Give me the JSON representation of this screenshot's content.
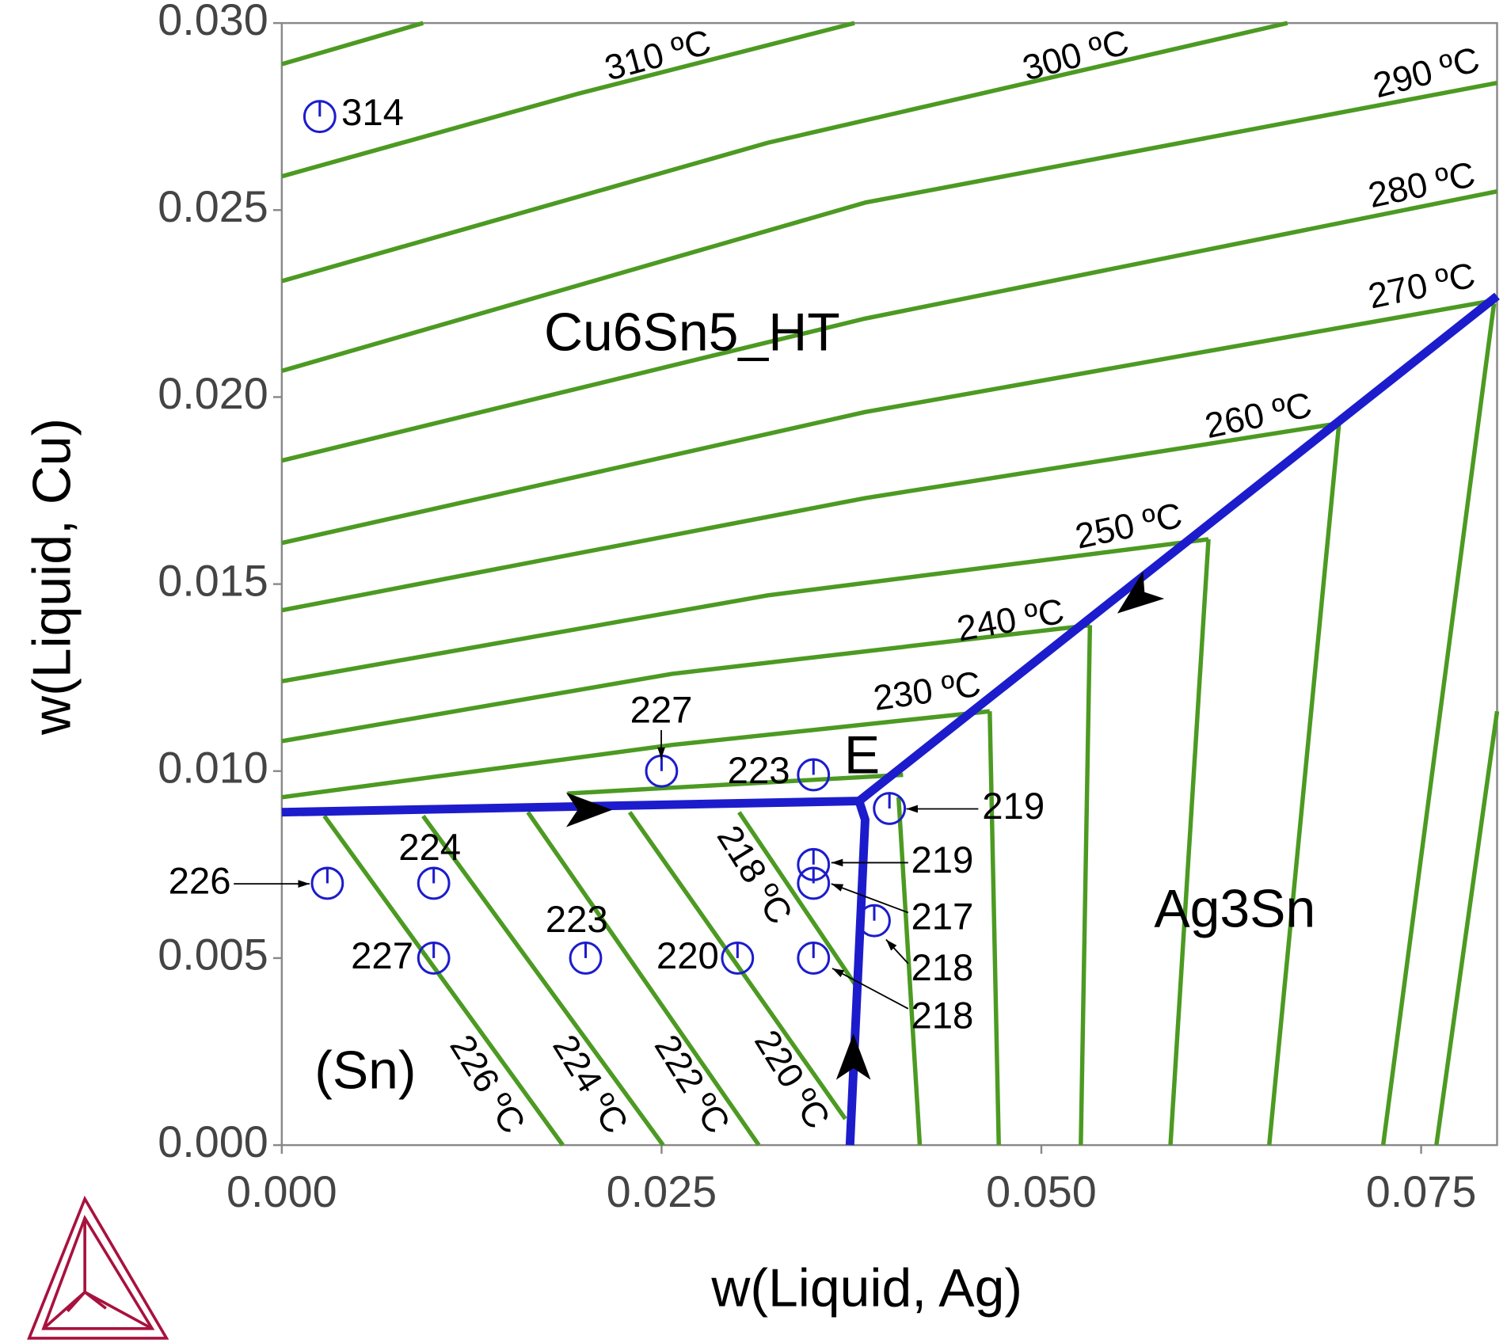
{
  "chart_data": {
    "type": "line",
    "xlabel": "w(Liquid, Ag)",
    "ylabel": "w(Liquid, Cu)",
    "xlim": [
      0,
      0.08
    ],
    "ylim": [
      0,
      0.03
    ],
    "xticks": [
      {
        "value": 0,
        "label": "0.000"
      },
      {
        "value": 0.025,
        "label": "0.025"
      },
      {
        "value": 0.05,
        "label": "0.050"
      },
      {
        "value": 0.075,
        "label": "0.075"
      }
    ],
    "yticks": [
      {
        "value": 0,
        "label": "0.000"
      },
      {
        "value": 0.005,
        "label": "0.005"
      },
      {
        "value": 0.01,
        "label": "0.010"
      },
      {
        "value": 0.015,
        "label": "0.015"
      },
      {
        "value": 0.02,
        "label": "0.020"
      },
      {
        "value": 0.025,
        "label": "0.025"
      },
      {
        "value": 0.03,
        "label": "0.030"
      }
    ],
    "series": [
      {
        "color": "#4c9a22",
        "x": [
          0,
          0.0093
        ],
        "y": [
          0.0289,
          0.03
        ]
      },
      {
        "color": "#4c9a22",
        "x": [
          0,
          0.0194,
          0.0377
        ],
        "y": [
          0.0259,
          0.0281,
          0.03
        ]
      },
      {
        "color": "#4c9a22",
        "x": [
          0,
          0.032,
          0.0662
        ],
        "y": [
          0.0231,
          0.0268,
          0.03
        ]
      },
      {
        "color": "#4c9a22",
        "x": [
          0,
          0.0384,
          0.08
        ],
        "y": [
          0.0207,
          0.0252,
          0.0284
        ]
      },
      {
        "color": "#4c9a22",
        "x": [
          0,
          0.0384,
          0.08
        ],
        "y": [
          0.0183,
          0.0221,
          0.0255
        ]
      },
      {
        "color": "#4c9a22",
        "x": [
          0,
          0.0384,
          0.08
        ],
        "y": [
          0.0161,
          0.0196,
          0.0226
        ]
      },
      {
        "color": "#4c9a22",
        "x": [
          0,
          0.0384,
          0.0696
        ],
        "y": [
          0.0143,
          0.0173,
          0.0193
        ]
      },
      {
        "color": "#4c9a22",
        "x": [
          0,
          0.032,
          0.061
        ],
        "y": [
          0.0124,
          0.0147,
          0.0162
        ]
      },
      {
        "color": "#4c9a22",
        "x": [
          0,
          0.0257,
          0.0532
        ],
        "y": [
          0.0108,
          0.0126,
          0.0139
        ]
      },
      {
        "color": "#4c9a22",
        "x": [
          0,
          0.0257,
          0.0466
        ],
        "y": [
          0.0093,
          0.0107,
          0.0116
        ]
      },
      {
        "color": "#4c9a22",
        "x": [
          0.0188,
          0.0409
        ],
        "y": [
          0.0094,
          0.0099
        ]
      },
      {
        "color": "#4c9a22",
        "x": [
          0.0028,
          0.0185
        ],
        "y": [
          0.0088,
          0
        ]
      },
      {
        "color": "#4c9a22",
        "x": [
          0.0093,
          0.0251
        ],
        "y": [
          0.0088,
          0
        ]
      },
      {
        "color": "#4c9a22",
        "x": [
          0.0162,
          0.0314
        ],
        "y": [
          0.0089,
          0
        ]
      },
      {
        "color": "#4c9a22",
        "x": [
          0.0229,
          0.0371
        ],
        "y": [
          0.0089,
          0.0007
        ]
      },
      {
        "color": "#4c9a22",
        "x": [
          0.0301,
          0.0379
        ],
        "y": [
          0.0089,
          0.0042
        ]
      },
      {
        "color": "#4c9a22",
        "x": [
          0.042,
          0.0406
        ],
        "y": [
          0,
          0.0093
        ]
      },
      {
        "color": "#4c9a22",
        "x": [
          0.0472,
          0.0466
        ],
        "y": [
          0,
          0.0116
        ]
      },
      {
        "color": "#4c9a22",
        "x": [
          0.0526,
          0.0532
        ],
        "y": [
          0,
          0.0139
        ]
      },
      {
        "color": "#4c9a22",
        "x": [
          0.0585,
          0.061
        ],
        "y": [
          0,
          0.0162
        ]
      },
      {
        "color": "#4c9a22",
        "x": [
          0.065,
          0.0696
        ],
        "y": [
          0,
          0.0193
        ]
      },
      {
        "color": "#4c9a22",
        "x": [
          0.0725,
          0.0798
        ],
        "y": [
          0,
          0.0225
        ]
      },
      {
        "color": "#4c9a22",
        "x": [
          0.076,
          0.08
        ],
        "y": [
          0,
          0.0116
        ]
      },
      {
        "color": "#1c1ccc",
        "x": [
          0,
          0.038
        ],
        "y": [
          0.0089,
          0.0092
        ]
      },
      {
        "color": "#1c1ccc",
        "x": [
          0.0374,
          0.0384,
          0.038
        ],
        "y": [
          0,
          0.0087,
          0.0092
        ]
      },
      {
        "color": "#1c1ccc",
        "x": [
          0.038,
          0.08
        ],
        "y": [
          0.0092,
          0.0227
        ]
      }
    ],
    "points": {
      "color": "#1c1ccc",
      "x": [
        0.0025,
        0.025,
        0.035,
        0.04,
        0.035,
        0.035,
        0.039,
        0.035,
        0.003,
        0.01,
        0.01,
        0.02,
        0.03
      ],
      "y": [
        0.0275,
        0.01,
        0.0099,
        0.009,
        0.0075,
        0.007,
        0.006,
        0.005,
        0.007,
        0.007,
        0.005,
        0.005,
        0.005
      ],
      "labels": [
        314,
        227,
        223,
        219,
        219,
        217,
        218,
        218,
        226,
        224,
        227,
        223,
        220
      ]
    },
    "isotherm_labels": [
      "310 ºC",
      "300 ºC",
      "290 ºC",
      "280 ºC",
      "270 ºC",
      "260 ºC",
      "250 ºC",
      "240 ºC",
      "230 ºC",
      "226 ºC",
      "224 ºC",
      "222 ºC",
      "220 ºC",
      "218 ºC"
    ],
    "region_labels": [
      "Cu6Sn5_HT",
      "Ag3Sn",
      "(Sn)",
      "E"
    ]
  }
}
